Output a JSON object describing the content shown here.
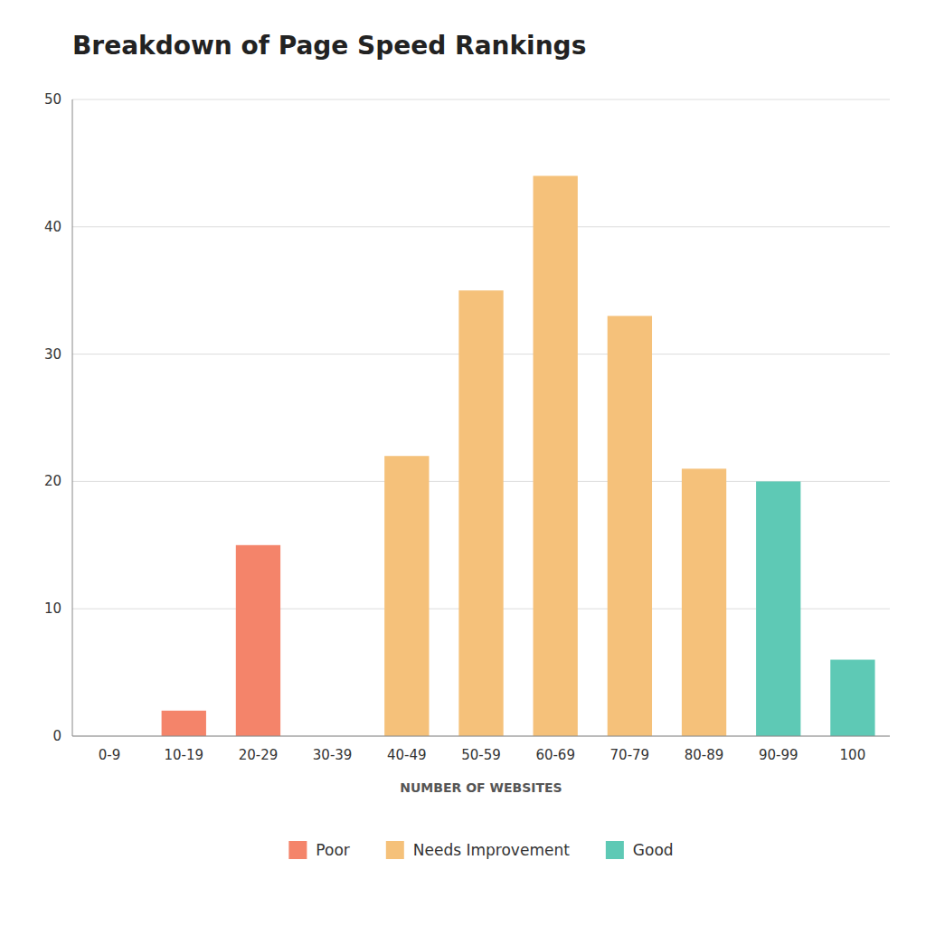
{
  "chart_data": {
    "type": "bar",
    "title": "Breakdown of Page Speed Rankings",
    "x_label": "NUMBER OF WEBSITES",
    "categories": [
      "0-9",
      "10-19",
      "20-29",
      "30-39",
      "40-49",
      "50-59",
      "60-69",
      "70-79",
      "80-89",
      "90-99",
      "100"
    ],
    "series": [
      {
        "name": "Poor",
        "color": "#F4846A",
        "values": [
          0,
          2,
          15,
          null,
          null,
          null,
          null,
          null,
          null,
          null,
          null
        ]
      },
      {
        "name": "Needs Improvement",
        "color": "#F5C17A",
        "values": [
          null,
          null,
          null,
          0,
          22,
          35,
          44,
          33,
          21,
          null,
          null
        ]
      },
      {
        "name": "Good",
        "color": "#5EC9B5",
        "values": [
          null,
          null,
          null,
          null,
          null,
          null,
          null,
          null,
          null,
          20,
          6
        ]
      }
    ],
    "stacked": true,
    "ylim": [
      0,
      50
    ],
    "yticks": [
      0,
      10,
      20,
      30,
      40,
      50
    ],
    "grid": true,
    "legend": "bottom"
  }
}
